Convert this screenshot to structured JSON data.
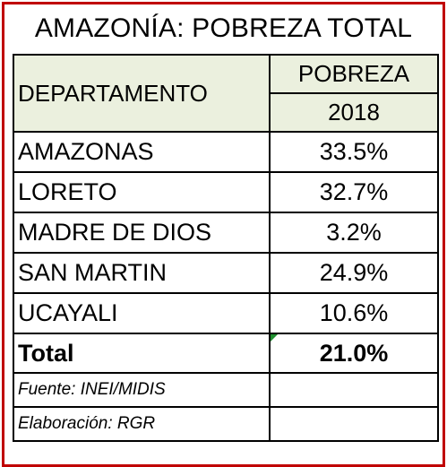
{
  "title": "AMAZONÍA: POBREZA TOTAL",
  "header": {
    "departamento": "DEPARTAMENTO",
    "pobreza": "POBREZA",
    "year": "2018"
  },
  "rows": [
    {
      "name": "AMAZONAS",
      "value": "33.5%"
    },
    {
      "name": "LORETO",
      "value": "32.7%"
    },
    {
      "name": "MADRE DE DIOS",
      "value": "3.2%"
    },
    {
      "name": "SAN MARTIN",
      "value": "24.9%"
    },
    {
      "name": "UCAYALI",
      "value": "10.6%"
    }
  ],
  "total": {
    "name": "Total",
    "value": "21.0%"
  },
  "footer": {
    "source": "Fuente: INEI/MIDIS",
    "author": "Elaboración: RGR"
  },
  "colors": {
    "frame": "#c00000",
    "header_fill": "#ebf0de",
    "cell_marker": "#1f8f2f"
  }
}
